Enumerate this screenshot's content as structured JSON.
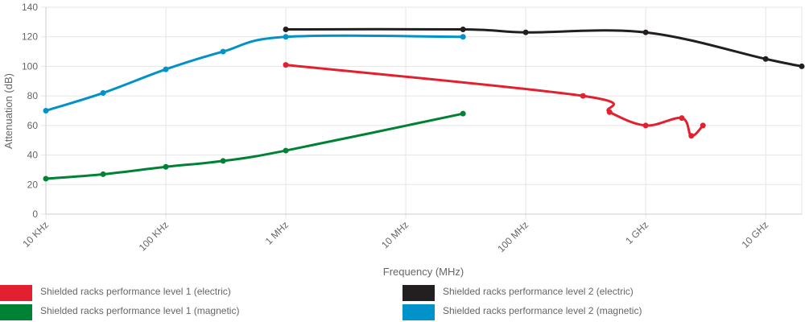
{
  "chart_data": {
    "type": "line",
    "title": "",
    "xlabel": "Frequency (MHz)",
    "ylabel": "Attenuation (dB)",
    "xscale": "log",
    "xlim": [
      0.01,
      20000
    ],
    "ylim": [
      0,
      140
    ],
    "yticks": [
      0,
      20,
      40,
      60,
      80,
      100,
      120,
      140
    ],
    "xticks": [
      {
        "value": 0.01,
        "label": "10 KHz"
      },
      {
        "value": 0.1,
        "label": "100 KHz"
      },
      {
        "value": 1,
        "label": "1 MHz"
      },
      {
        "value": 10,
        "label": "10 MHz"
      },
      {
        "value": 100,
        "label": "100 MHz"
      },
      {
        "value": 1000,
        "label": "1 GHz"
      },
      {
        "value": 10000,
        "label": "10 GHz"
      }
    ],
    "grid": true,
    "legend_position": "bottom",
    "series": [
      {
        "name": "Shielded racks performance level 1 (electric)",
        "color": "#e3202f",
        "points": [
          [
            1,
            101
          ],
          [
            300,
            80
          ],
          [
            500,
            69
          ],
          [
            1000,
            60
          ],
          [
            2000,
            65
          ],
          [
            2400,
            53
          ],
          [
            3000,
            60
          ]
        ]
      },
      {
        "name": "Shielded racks performance level 1 (magnetic)",
        "color": "#008234",
        "points": [
          [
            0.01,
            24
          ],
          [
            0.03,
            27
          ],
          [
            0.1,
            32
          ],
          [
            0.3,
            36
          ],
          [
            1,
            43
          ],
          [
            30,
            68
          ]
        ]
      },
      {
        "name": "Shielded racks performance level 2 (electric)",
        "color": "#231f20",
        "points": [
          [
            1,
            125
          ],
          [
            30,
            125
          ],
          [
            100,
            123
          ],
          [
            1000,
            123
          ],
          [
            10000,
            105
          ],
          [
            20000,
            100
          ]
        ]
      },
      {
        "name": "Shielded racks performance level 2 (magnetic)",
        "color": "#0092c8",
        "points": [
          [
            0.01,
            70
          ],
          [
            0.03,
            82
          ],
          [
            0.1,
            98
          ],
          [
            0.3,
            110
          ],
          [
            1,
            120
          ],
          [
            30,
            120
          ]
        ]
      }
    ]
  }
}
